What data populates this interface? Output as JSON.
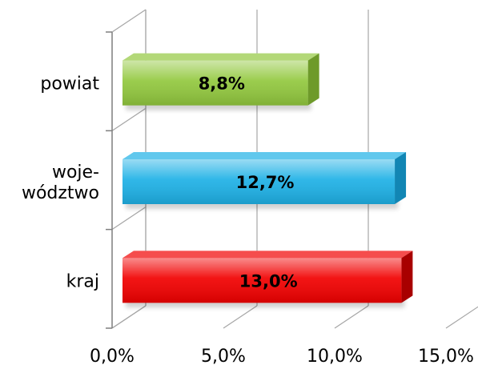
{
  "chart_data": {
    "type": "bar",
    "orientation": "horizontal",
    "style": "3d",
    "categories": [
      "powiat",
      "woje-\nwództwo",
      "kraj"
    ],
    "values": [
      8.8,
      12.7,
      13.0
    ],
    "data_labels": [
      "8,8%",
      "12,7%",
      "13,0%"
    ],
    "bar_colors": [
      "#92c83e",
      "#1eb1e6",
      "#f10000"
    ],
    "bar_side_colors": [
      "#6e9a2a",
      "#1286b4",
      "#a80000"
    ],
    "title": "",
    "xlabel": "",
    "ylabel": "",
    "xlim": [
      0,
      15
    ],
    "x_ticks": [
      0,
      5,
      10,
      15
    ],
    "x_tick_labels": [
      "0,0%",
      "5,0%",
      "10,0%",
      "15,0%"
    ],
    "grid": true,
    "legend": "none"
  }
}
